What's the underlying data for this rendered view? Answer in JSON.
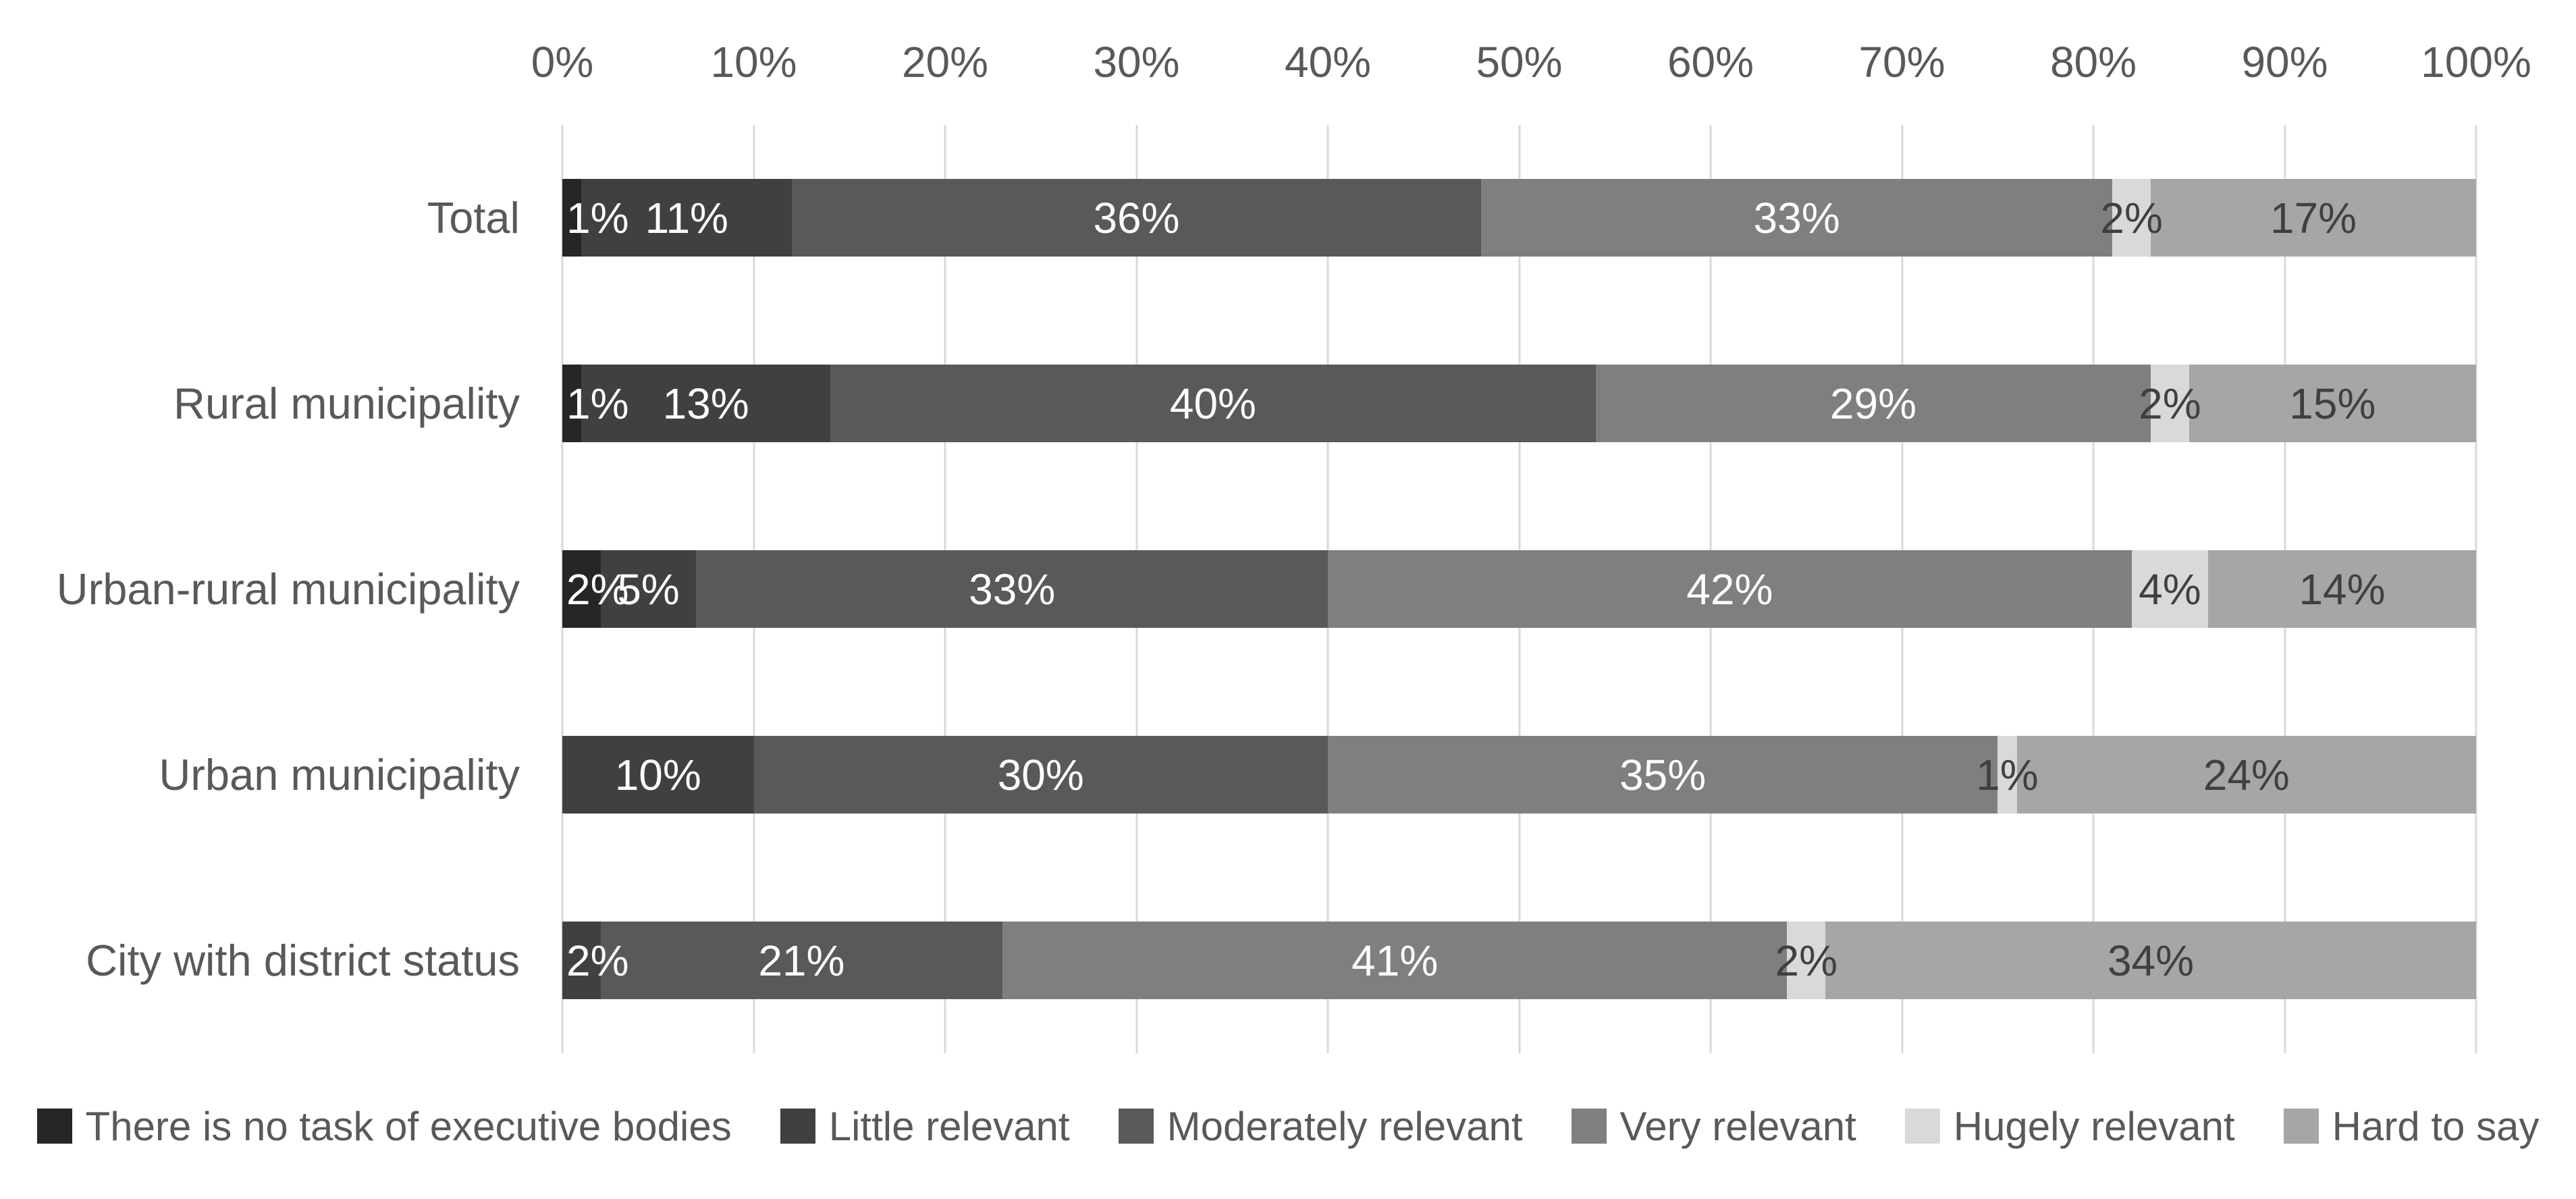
{
  "chart_data": {
    "type": "bar",
    "stacked": true,
    "orientation": "horizontal",
    "categories": [
      "Total",
      "Rural municipality",
      "Urban-rural municipality",
      "Urban municipality",
      "City with district status"
    ],
    "series": [
      {
        "name": "There is no task of executive bodies",
        "color": "#262626",
        "label_color": "#ffffff",
        "values": [
          1,
          1,
          2,
          0,
          0
        ]
      },
      {
        "name": "Little relevant",
        "color": "#404040",
        "label_color": "#ffffff",
        "values": [
          11,
          13,
          5,
          10,
          2
        ]
      },
      {
        "name": "Moderately relevant",
        "color": "#595959",
        "label_color": "#ffffff",
        "values": [
          36,
          40,
          33,
          30,
          21
        ]
      },
      {
        "name": "Very relevant",
        "color": "#7f7f7f",
        "label_color": "#ffffff",
        "values": [
          33,
          29,
          42,
          35,
          41
        ]
      },
      {
        "name": "Hugely relevant",
        "color": "#d9d9d9",
        "label_color": "#404040",
        "values": [
          2,
          2,
          4,
          1,
          2
        ]
      },
      {
        "name": "Hard to say",
        "color": "#a6a6a6",
        "label_color": "#404040",
        "values": [
          17,
          15,
          14,
          24,
          34
        ]
      }
    ],
    "x_ticks": [
      "0%",
      "10%",
      "20%",
      "30%",
      "40%",
      "50%",
      "60%",
      "70%",
      "80%",
      "90%",
      "100%"
    ],
    "xlim": [
      0,
      100
    ],
    "grid": true,
    "legend_position": "bottom",
    "data_label_format": "{value}%"
  },
  "styles": {
    "gridline_color": "#d9d9d9",
    "axis_text_color": "#595959",
    "background": "#ffffff"
  }
}
